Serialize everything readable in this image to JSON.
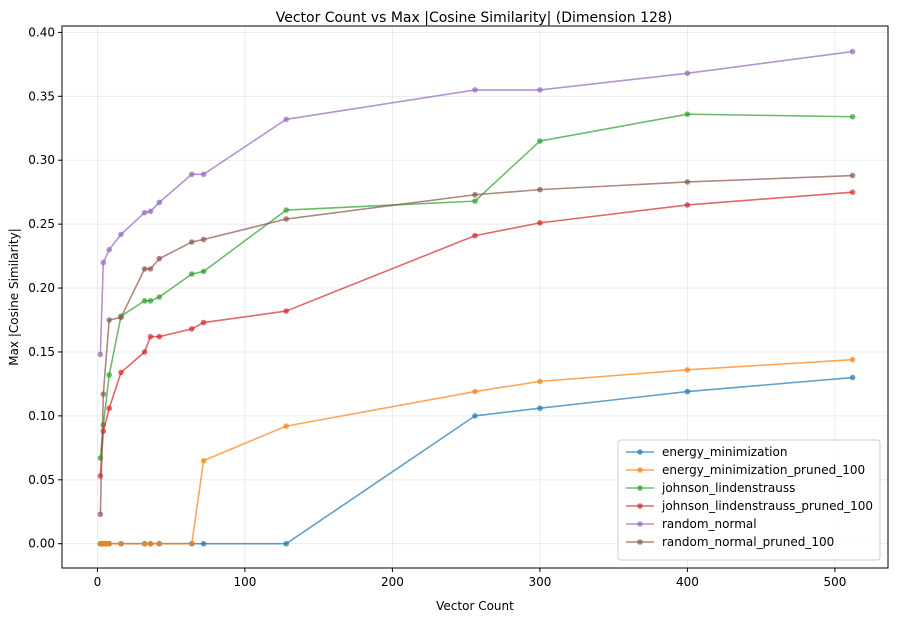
{
  "chart_data": {
    "type": "line",
    "title": "Vector Count vs Max |Cosine Similarity| (Dimension 128)",
    "xlabel": "Vector Count",
    "ylabel": "Max |Cosine Similarity|",
    "xlim": [
      -24,
      536
    ],
    "ylim": [
      -0.019,
      0.405
    ],
    "xticks": [
      0,
      100,
      200,
      300,
      400,
      500
    ],
    "yticks": [
      0.0,
      0.05,
      0.1,
      0.15,
      0.2,
      0.25,
      0.3,
      0.35,
      0.4
    ],
    "xtick_labels": [
      "0",
      "100",
      "200",
      "300",
      "400",
      "500"
    ],
    "ytick_labels": [
      "0.00",
      "0.05",
      "0.10",
      "0.15",
      "0.20",
      "0.25",
      "0.30",
      "0.35",
      "0.40"
    ],
    "grid": true,
    "legend_position": "lower-right",
    "series": [
      {
        "name": "energy_minimization",
        "color": "#1f77b4",
        "x": [
          2,
          3,
          4,
          6,
          8,
          16,
          32,
          36,
          42,
          64,
          72,
          128,
          256,
          300,
          400,
          512
        ],
        "y": [
          0.0,
          0.0,
          0.0,
          0.0,
          0.0,
          0.0,
          0.0,
          0.0,
          0.0,
          0.0,
          0.0,
          0.0,
          0.1,
          0.106,
          0.119,
          0.13
        ]
      },
      {
        "name": "energy_minimization_pruned_100",
        "color": "#ff7f0e",
        "x": [
          2,
          3,
          4,
          6,
          8,
          16,
          32,
          36,
          42,
          64,
          72,
          128,
          256,
          300,
          400,
          512
        ],
        "y": [
          0.0,
          0.0,
          0.0,
          0.0,
          0.0,
          0.0,
          0.0,
          0.0,
          0.0,
          0.0,
          0.065,
          0.092,
          0.119,
          0.127,
          0.136,
          0.144
        ]
      },
      {
        "name": "johnson_lindenstrauss",
        "color": "#2ca02c",
        "x": [
          2,
          4,
          8,
          16,
          32,
          36,
          42,
          64,
          72,
          128,
          256,
          300,
          400,
          512
        ],
        "y": [
          0.067,
          0.093,
          0.132,
          0.178,
          0.19,
          0.19,
          0.193,
          0.211,
          0.213,
          0.261,
          0.268,
          0.315,
          0.336,
          0.334
        ]
      },
      {
        "name": "johnson_lindenstrauss_pruned_100",
        "color": "#d62728",
        "x": [
          2,
          4,
          8,
          16,
          32,
          36,
          42,
          64,
          72,
          128,
          256,
          300,
          400,
          512
        ],
        "y": [
          0.053,
          0.088,
          0.106,
          0.134,
          0.15,
          0.162,
          0.162,
          0.168,
          0.173,
          0.182,
          0.241,
          0.251,
          0.265,
          0.275
        ]
      },
      {
        "name": "random_normal",
        "color": "#9467bd",
        "x": [
          2,
          4,
          8,
          16,
          32,
          36,
          42,
          64,
          72,
          128,
          256,
          300,
          400,
          512
        ],
        "y": [
          0.148,
          0.22,
          0.23,
          0.242,
          0.259,
          0.26,
          0.267,
          0.289,
          0.289,
          0.332,
          0.355,
          0.355,
          0.368,
          0.385
        ]
      },
      {
        "name": "random_normal_pruned_100",
        "color": "#8c564b",
        "x": [
          2,
          4,
          8,
          16,
          32,
          36,
          42,
          64,
          72,
          128,
          256,
          300,
          400,
          512
        ],
        "y": [
          0.023,
          0.117,
          0.175,
          0.177,
          0.215,
          0.215,
          0.223,
          0.236,
          0.238,
          0.254,
          0.273,
          0.277,
          0.283,
          0.288
        ]
      }
    ]
  }
}
